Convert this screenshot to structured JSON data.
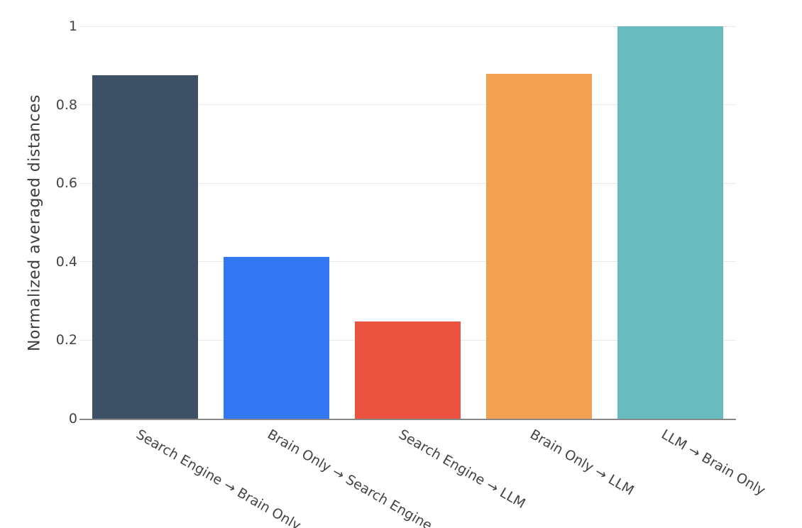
{
  "figure": {
    "background_color": "#ffffff"
  },
  "chart_data": {
    "type": "bar",
    "title": "",
    "xlabel": "",
    "ylabel": "Normalized averaged distances",
    "categories": [
      "Search Engine → Brain Only",
      "Brain Only → Search Engine",
      "Search Engine → LLM",
      "Brain Only → LLM",
      "LLM → Brain Only"
    ],
    "values": [
      0.875,
      0.413,
      0.247,
      0.879,
      1.0
    ],
    "bar_colors": [
      "#3E5066",
      "#3377F4",
      "#EB5341",
      "#F2A052",
      "#69BCBD"
    ],
    "ylim": [
      0,
      1
    ],
    "ytick_values": [
      0,
      0.2,
      0.4,
      0.6,
      0.8,
      1
    ],
    "ytick_labels": [
      "0",
      "0.2",
      "0.4",
      "0.6",
      "0.8",
      "1"
    ],
    "xtick_angle_deg": 30,
    "grid": true,
    "grid_color": "#e8e8e8",
    "axis_line_color": "#888888",
    "tick_label_color": "#444444",
    "axis_title_color": "#3d3d3d",
    "legend": "none"
  }
}
